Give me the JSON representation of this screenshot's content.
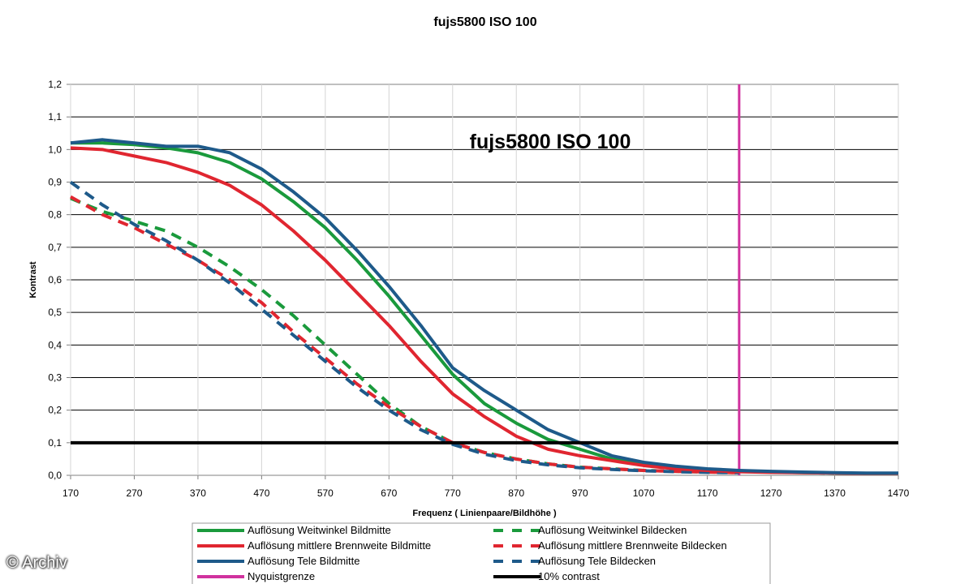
{
  "chart_data": {
    "type": "line",
    "title": "fujs5800 ISO 100",
    "inner_title": "fujs5800 ISO 100",
    "xlabel": "Frequenz ( Linienpaare/Bildhöhe )",
    "ylabel": "Kontrast",
    "xlim": [
      170,
      1470
    ],
    "ylim": [
      0,
      1.2
    ],
    "x_ticks": [
      "170",
      "270",
      "370",
      "470",
      "570",
      "670",
      "770",
      "870",
      "970",
      "1070",
      "1170",
      "1270",
      "1370",
      "1470"
    ],
    "y_ticks": [
      "0,0",
      "0,1",
      "0,2",
      "0,3",
      "0,4",
      "0,5",
      "0,6",
      "0,7",
      "0,8",
      "0,9",
      "1,0",
      "1,1",
      "1,2"
    ],
    "grid": "horizontal",
    "legend_position": "bottom",
    "series": [
      {
        "name": "Auflösung Weitwinkel Bildmitte",
        "color": "#1a9a3c",
        "style": "solid",
        "x": [
          170,
          220,
          270,
          320,
          370,
          420,
          470,
          520,
          570,
          620,
          670,
          720,
          770,
          820,
          870,
          920,
          970,
          1020,
          1070,
          1120,
          1170,
          1220,
          1270,
          1320,
          1370,
          1420,
          1470
        ],
        "y": [
          1.02,
          1.02,
          1.015,
          1.005,
          0.99,
          0.96,
          0.91,
          0.84,
          0.76,
          0.66,
          0.55,
          0.43,
          0.31,
          0.22,
          0.16,
          0.11,
          0.08,
          0.05,
          0.035,
          0.025,
          0.018,
          0.013,
          0.01,
          0.008,
          0.007,
          0.006,
          0.006
        ]
      },
      {
        "name": "Auflösung mittlere Brennweite Bildmitte",
        "color": "#e02630",
        "style": "solid",
        "x": [
          170,
          220,
          270,
          320,
          370,
          420,
          470,
          520,
          570,
          620,
          670,
          720,
          770,
          820,
          870,
          920,
          970,
          1020,
          1070,
          1120,
          1170,
          1220,
          1270,
          1320,
          1370,
          1420,
          1470
        ],
        "y": [
          1.005,
          1.0,
          0.98,
          0.96,
          0.93,
          0.89,
          0.83,
          0.75,
          0.66,
          0.56,
          0.46,
          0.35,
          0.25,
          0.18,
          0.12,
          0.08,
          0.06,
          0.045,
          0.03,
          0.02,
          0.015,
          0.011,
          0.009,
          0.008,
          0.007,
          0.006,
          0.006
        ]
      },
      {
        "name": "Auflösung Tele Bildmitte",
        "color": "#1e5a8a",
        "style": "solid",
        "x": [
          170,
          220,
          270,
          320,
          370,
          420,
          470,
          520,
          570,
          620,
          670,
          720,
          770,
          820,
          870,
          920,
          970,
          1020,
          1070,
          1120,
          1170,
          1220,
          1270,
          1320,
          1370,
          1420,
          1470
        ],
        "y": [
          1.02,
          1.03,
          1.02,
          1.01,
          1.01,
          0.99,
          0.94,
          0.87,
          0.79,
          0.69,
          0.58,
          0.46,
          0.33,
          0.26,
          0.2,
          0.14,
          0.1,
          0.06,
          0.04,
          0.028,
          0.02,
          0.015,
          0.012,
          0.01,
          0.008,
          0.007,
          0.007
        ]
      },
      {
        "name": "Nyquistgrenze",
        "color": "#d0329e",
        "style": "vertical",
        "x": [
          1220,
          1220
        ],
        "y": [
          0,
          1.2
        ]
      },
      {
        "name": "Auflösung Weitwinkel Bildecken",
        "color": "#1a9a3c",
        "style": "dashed",
        "x": [
          170,
          220,
          270,
          320,
          370,
          420,
          470,
          520,
          570,
          620,
          670,
          720,
          770,
          820,
          870,
          920,
          970,
          1020,
          1070,
          1120,
          1170,
          1220
        ],
        "y": [
          0.85,
          0.81,
          0.78,
          0.75,
          0.7,
          0.64,
          0.57,
          0.49,
          0.4,
          0.31,
          0.22,
          0.15,
          0.1,
          0.07,
          0.05,
          0.035,
          0.025,
          0.02,
          0.015,
          0.012,
          0.01,
          0.008
        ]
      },
      {
        "name": "Auflösung mittlere Brennweite Bildecken",
        "color": "#e02630",
        "style": "dashed",
        "x": [
          170,
          220,
          270,
          320,
          370,
          420,
          470,
          520,
          570,
          620,
          670,
          720,
          770,
          820,
          870,
          920,
          970,
          1020,
          1070,
          1120,
          1170,
          1220
        ],
        "y": [
          0.855,
          0.8,
          0.76,
          0.71,
          0.66,
          0.6,
          0.53,
          0.44,
          0.36,
          0.28,
          0.21,
          0.15,
          0.1,
          0.07,
          0.05,
          0.035,
          0.025,
          0.02,
          0.015,
          0.012,
          0.01,
          0.008
        ]
      },
      {
        "name": "Auflösung Tele Bildecken",
        "color": "#1e5a8a",
        "style": "dashed",
        "x": [
          170,
          220,
          270,
          320,
          370,
          420,
          470,
          520,
          570,
          620,
          670,
          720,
          770,
          820,
          870,
          920,
          970,
          1020,
          1070,
          1120,
          1170,
          1220
        ],
        "y": [
          0.9,
          0.83,
          0.77,
          0.72,
          0.66,
          0.59,
          0.51,
          0.43,
          0.35,
          0.27,
          0.2,
          0.14,
          0.095,
          0.065,
          0.045,
          0.032,
          0.023,
          0.018,
          0.014,
          0.011,
          0.009,
          0.008
        ]
      },
      {
        "name": "10% contrast",
        "color": "#000000",
        "style": "horizontal",
        "x": [
          170,
          1470
        ],
        "y": [
          0.1,
          0.1
        ]
      }
    ]
  },
  "watermark": "© Archiv"
}
